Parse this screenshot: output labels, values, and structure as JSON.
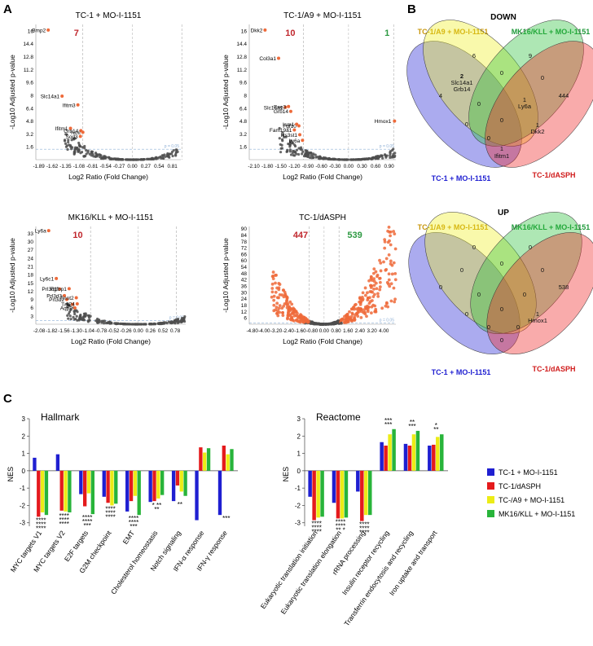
{
  "panel_labels": {
    "a": "A",
    "b": "B",
    "c": "C"
  },
  "volcano_axes": {
    "xlabel": "Log2 Ratio (Fold Change)",
    "ylabel": "-Log10 Adjusted p-value"
  },
  "volcano_threshold_text": "p = 0.05",
  "colors": {
    "dot_gray": "#4d4d4d",
    "dot_orange": "#ee6a3a",
    "down_count": "#c0272d",
    "up_count": "#2e9a43",
    "blue": "#1f1fd1",
    "red": "#e41a1c",
    "yellow": "#ecec16",
    "green": "#28b43a"
  },
  "venn": {
    "down_title": "DOWN",
    "up_title": "UP",
    "set_names": [
      "TC-1/A9 + MO-I-1151",
      "MK16/KLL + MO-I-1151",
      "TC-1 + MO-I-1151",
      "TC-1/dASPH"
    ],
    "down_regions": [
      {
        "text": "6"
      },
      {
        "text": "9"
      },
      {
        "text": "4"
      },
      {
        "text": "444"
      },
      {
        "text": "2"
      },
      {
        "text": "Slc14a1"
      },
      {
        "text": "Grb14"
      },
      {
        "text": "0"
      },
      {
        "text": "0"
      },
      {
        "text": "0"
      },
      {
        "text": "1"
      },
      {
        "text": "Ly6a"
      },
      {
        "text": "0"
      },
      {
        "text": "0"
      },
      {
        "text": "0"
      },
      {
        "text": "1"
      },
      {
        "text": "Dkk2"
      },
      {
        "text": "1"
      },
      {
        "text": "Ifitm1"
      }
    ],
    "up_regions": [
      {
        "text": "0"
      },
      {
        "text": "0"
      },
      {
        "text": "0"
      },
      {
        "text": "538"
      },
      {
        "text": "0"
      },
      {
        "text": "0"
      },
      {
        "text": "0"
      },
      {
        "text": "0"
      },
      {
        "text": "0"
      },
      {
        "text": "0"
      },
      {
        "text": "0"
      },
      {
        "text": "0"
      },
      {
        "text": "1"
      },
      {
        "text": "Hmox1"
      },
      {
        "text": "0"
      },
      {
        "text": "0"
      }
    ]
  },
  "chart_data": [
    {
      "type": "scatter",
      "id": "v1",
      "title": "TC-1 + MO-I-1151",
      "xlabel": "Log2 Ratio (Fold Change)",
      "ylabel": "-Log10 Adjusted p-value",
      "xlim": [
        -1.95,
        0.98
      ],
      "ylim": [
        0,
        16.8
      ],
      "xticks": [
        -1.89,
        -1.62,
        -1.35,
        -1.08,
        -0.81,
        -0.54,
        -0.27,
        0.0,
        0.27,
        0.54,
        0.81
      ],
      "yticks": [
        1.6,
        3.2,
        4.8,
        6.4,
        8.0,
        9.6,
        11.2,
        12.8,
        14.4,
        16.0
      ],
      "sig_lines_x": [
        -1.0,
        1.0
      ],
      "sig_line_y": 1.3,
      "down_count": "7",
      "up_count": "",
      "genes": [
        {
          "label": "Bmp2",
          "x": -1.7,
          "y": 16.1
        },
        {
          "label": "Slc14a1",
          "x": -1.42,
          "y": 7.9
        },
        {
          "label": "Ifitm3",
          "x": -1.1,
          "y": 6.8
        },
        {
          "label": "Grb14",
          "x": -1.04,
          "y": 3.6
        },
        {
          "label": "Ifitm1",
          "x": -1.25,
          "y": 3.9
        },
        {
          "label": "Nmi",
          "x": -1.0,
          "y": 3.4
        },
        {
          "label": "Sod3",
          "x": -1.05,
          "y": 2.9
        }
      ]
    },
    {
      "type": "scatter",
      "id": "v2",
      "title": "TC-1/A9 + MO-I-1151",
      "xlabel": "Log2 Ratio (Fold Change)",
      "ylabel": "-Log10 Adjusted p-value",
      "xlim": [
        -2.2,
        1.05
      ],
      "ylim": [
        0,
        16.8
      ],
      "xticks": [
        -2.1,
        -1.8,
        -1.5,
        -1.2,
        -0.9,
        -0.6,
        -0.3,
        0.0,
        0.3,
        0.6,
        0.9
      ],
      "yticks": [
        1.6,
        3.2,
        4.8,
        6.4,
        8.0,
        9.6,
        11.2,
        12.8,
        14.4,
        16.0
      ],
      "sig_lines_x": [
        -1.0,
        1.0
      ],
      "sig_line_y": 1.3,
      "down_count": "10",
      "up_count": "1",
      "genes": [
        {
          "label": "Dkk2",
          "x": -1.85,
          "y": 16.1
        },
        {
          "label": "Col3a1",
          "x": -1.55,
          "y": 12.6
        },
        {
          "label": "Slc14a1",
          "x": -1.4,
          "y": 6.5
        },
        {
          "label": "Eno3",
          "x": -1.33,
          "y": 6.6
        },
        {
          "label": "Grb14",
          "x": -1.28,
          "y": 6.0
        },
        {
          "label": "Fgf10",
          "x": -1.1,
          "y": 4.2
        },
        {
          "label": "Ism1",
          "x": -1.15,
          "y": 4.4
        },
        {
          "label": "Fam19a1",
          "x": -1.2,
          "y": 3.7
        },
        {
          "label": "Hs3st1",
          "x": -1.08,
          "y": 3.1
        },
        {
          "label": "Ly6a",
          "x": -1.02,
          "y": 2.4
        },
        {
          "label": "Hmox1",
          "x": 1.02,
          "y": 4.8
        }
      ]
    },
    {
      "type": "scatter",
      "id": "v3",
      "title": "MK16/KLL + MO-I-1151",
      "xlabel": "Log2 Ratio (Fold Change)",
      "ylabel": "-Log10 Adjusted p-value",
      "xlim": [
        -2.15,
        1.0
      ],
      "ylim": [
        0,
        35.5
      ],
      "xticks": [
        -2.08,
        -1.82,
        -1.56,
        -1.3,
        -1.04,
        -0.78,
        -0.52,
        -0.26,
        0.0,
        0.26,
        0.52,
        0.78
      ],
      "yticks": [
        3,
        6,
        9,
        12,
        15,
        18,
        21,
        24,
        27,
        30,
        33
      ],
      "sig_lines_x": [
        -1.0,
        0.8
      ],
      "sig_line_y": 1.3,
      "down_count": "10",
      "up_count": "",
      "genes": [
        {
          "label": "Ly6a",
          "x": -1.88,
          "y": 34.0
        },
        {
          "label": "Ly6c1",
          "x": -1.72,
          "y": 16.6
        },
        {
          "label": "Prl3d1",
          "x": -1.65,
          "y": 12.8
        },
        {
          "label": "Fgfbp1",
          "x": -1.45,
          "y": 12.9
        },
        {
          "label": "Prl3d3",
          "x": -1.55,
          "y": 10.4
        },
        {
          "label": "Prl3d2",
          "x": -1.5,
          "y": 9.0
        },
        {
          "label": "Tnnt2",
          "x": -1.3,
          "y": 9.6
        },
        {
          "label": "Tnc",
          "x": -1.38,
          "y": 7.2
        },
        {
          "label": "Il24",
          "x": -1.28,
          "y": 7.4
        },
        {
          "label": "Aqp8",
          "x": -1.33,
          "y": 5.9
        }
      ]
    },
    {
      "type": "scatter",
      "id": "v4",
      "title": "TC-1/dASPH",
      "xlabel": "Log2 Ratio (Fold Change)",
      "ylabel": "-Log10 Adjusted p-value",
      "xlim": [
        -5.0,
        4.8
      ],
      "ylim": [
        0,
        92
      ],
      "xticks": [
        -4.8,
        -4.0,
        -3.2,
        -2.4,
        -1.6,
        -0.8,
        0.0,
        0.8,
        1.6,
        2.4,
        3.2,
        4.0
      ],
      "yticks": [
        6,
        12,
        18,
        24,
        30,
        36,
        42,
        48,
        54,
        60,
        66,
        72,
        78,
        84,
        90
      ],
      "sig_lines_x": [
        -1.0,
        1.0
      ],
      "sig_line_y": 1.3,
      "down_count": "447",
      "up_count": "539",
      "genes": []
    },
    {
      "type": "bar",
      "id": "hallmark",
      "title": "Hallmark",
      "ylabel": "NES",
      "ylim": [
        -3.2,
        3.0
      ],
      "yticks": [
        -3,
        -2,
        -1,
        0,
        1,
        2,
        3
      ],
      "categories": [
        "MYC targets V1",
        "MYC targets V2",
        "E2F targets",
        "G2M checkpoint",
        "EMT",
        "Cholesterol homeostasis",
        "Notch signaling",
        "IFN-α response",
        "IFN-γ response"
      ],
      "series": [
        {
          "name": "TC-1 + MO-I-1151",
          "values": [
            0.75,
            0.95,
            -1.35,
            -1.5,
            -2.35,
            -1.8,
            -1.75,
            -2.85,
            -2.55
          ]
        },
        {
          "name": "TC-1/dASPH",
          "values": [
            -2.65,
            -2.3,
            -2.05,
            -1.85,
            -1.75,
            -1.75,
            -0.85,
            1.35,
            1.45
          ]
        },
        {
          "name": "TC-/A9 + MO-I-1151",
          "values": [
            -2.4,
            -2.35,
            -1.3,
            -2.0,
            -1.45,
            -1.6,
            -1.2,
            1.05,
            0.95
          ]
        },
        {
          "name": "MK16/KLL + MO-I-1151",
          "values": [
            -2.55,
            -2.4,
            -2.5,
            -1.9,
            -2.55,
            -1.4,
            -1.45,
            1.3,
            1.25
          ]
        }
      ],
      "annotations": [
        {
          "category": 0,
          "text": "****"
        },
        {
          "category": 0,
          "text": "****"
        },
        {
          "category": 0,
          "text": "****"
        },
        {
          "category": 1,
          "text": "****"
        },
        {
          "category": 1,
          "text": "****"
        },
        {
          "category": 1,
          "text": "****"
        },
        {
          "category": 2,
          "text": "****"
        },
        {
          "category": 2,
          "text": "****"
        },
        {
          "category": 2,
          "text": "***"
        },
        {
          "category": 3,
          "text": "****"
        },
        {
          "category": 3,
          "text": "****"
        },
        {
          "category": 3,
          "text": "****"
        },
        {
          "category": 4,
          "text": "****"
        },
        {
          "category": 4,
          "text": "****"
        },
        {
          "category": 4,
          "text": "***"
        },
        {
          "category": 5,
          "text": "* **"
        },
        {
          "category": 5,
          "text": "**"
        },
        {
          "category": 6,
          "text": "**"
        },
        {
          "category": 8,
          "text": "***"
        }
      ]
    },
    {
      "type": "bar",
      "id": "reactome",
      "title": "Reactome",
      "ylabel": "NES",
      "ylim": [
        -3.2,
        3.0
      ],
      "yticks": [
        -3,
        -2,
        -1,
        0,
        1,
        2,
        3
      ],
      "categories": [
        "Eukaryotic translation initiation",
        "Eukaryotic translation elongation",
        "rRNA processing",
        "Insulin receptor recycling",
        "Transferrin endocytosis and recycling",
        "Iron uptake and transport"
      ],
      "series": [
        {
          "name": "TC-1 + MO-I-1151",
          "values": [
            -1.5,
            -1.85,
            -1.2,
            1.65,
            1.55,
            1.45
          ]
        },
        {
          "name": "TC-1/dASPH",
          "values": [
            -2.85,
            -2.75,
            -2.9,
            1.45,
            1.45,
            1.5
          ]
        },
        {
          "name": "TC-/A9 + MO-I-1151",
          "values": [
            -2.7,
            -2.75,
            -2.55,
            2.1,
            2.1,
            1.95
          ]
        },
        {
          "name": "MK16/KLL + MO-I-1151",
          "values": [
            -2.65,
            -2.7,
            -2.55,
            2.4,
            2.3,
            2.1
          ]
        }
      ],
      "annotations": [
        {
          "category": 0,
          "text": "****"
        },
        {
          "category": 0,
          "text": "****"
        },
        {
          "category": 0,
          "text": "****"
        },
        {
          "category": 1,
          "text": "****"
        },
        {
          "category": 1,
          "text": "****"
        },
        {
          "category": 1,
          "text": "** *"
        },
        {
          "category": 2,
          "text": "****"
        },
        {
          "category": 2,
          "text": "****"
        },
        {
          "category": 2,
          "text": "****"
        },
        {
          "category": 3,
          "text": "***"
        },
        {
          "category": 3,
          "text": "***"
        },
        {
          "category": 4,
          "text": "***"
        },
        {
          "category": 4,
          "text": "**"
        },
        {
          "category": 5,
          "text": "**"
        },
        {
          "category": 5,
          "text": "*"
        }
      ]
    }
  ],
  "legend": [
    {
      "label": "TC-1 + MO-I-1151"
    },
    {
      "label": "TC-1/dASPH"
    },
    {
      "label": "TC-/A9 + MO-I-1151"
    },
    {
      "label": "MK16/KLL + MO-I-1151"
    }
  ]
}
